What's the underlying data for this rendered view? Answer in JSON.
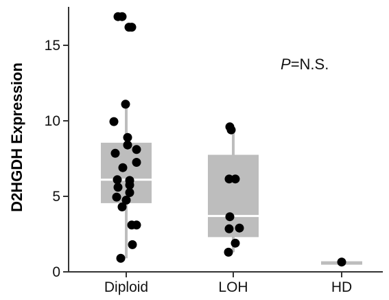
{
  "chart_data": {
    "type": "box",
    "ylabel": "D2HGDH Expression",
    "xlabel": "",
    "ylim": [
      0,
      17.5
    ],
    "yticks": [
      0,
      5,
      10,
      15
    ],
    "grid": false,
    "categories": [
      "Diploid",
      "LOH",
      "HD"
    ],
    "annotation": {
      "italic": "P",
      "text": "=N.S."
    },
    "colors": {
      "box": "#bdbdbd",
      "median": "#ffffff",
      "point": "#000000",
      "axis": "#333333"
    },
    "boxes": [
      {
        "category": "Diploid",
        "q1": 4.55,
        "median": 6.1,
        "q3": 8.55,
        "whisker_low": 0.9,
        "whisker_high": 11.0
      },
      {
        "category": "LOH",
        "q1": 2.3,
        "median": 3.7,
        "q3": 7.75,
        "whisker_low": 1.3,
        "whisker_high": 9.5
      },
      {
        "category": "HD",
        "q1": 0.6,
        "median": 0.65,
        "q3": 0.7,
        "whisker_low": 0.6,
        "whisker_high": 0.7
      }
    ],
    "points": [
      {
        "category": "Diploid",
        "values": [
          16.9,
          16.9,
          16.2,
          16.2,
          11.1,
          9.95,
          8.9,
          8.4,
          8.1,
          7.85,
          7.25,
          6.9,
          6.1,
          6.05,
          5.75,
          5.6,
          5.25,
          4.95,
          4.75,
          4.3,
          3.1,
          3.1,
          1.8,
          0.9
        ]
      },
      {
        "category": "LOH",
        "values": [
          9.6,
          9.4,
          6.15,
          6.15,
          3.65,
          2.9,
          2.85,
          1.9,
          1.3
        ]
      },
      {
        "category": "HD",
        "values": [
          0.65
        ]
      }
    ]
  }
}
